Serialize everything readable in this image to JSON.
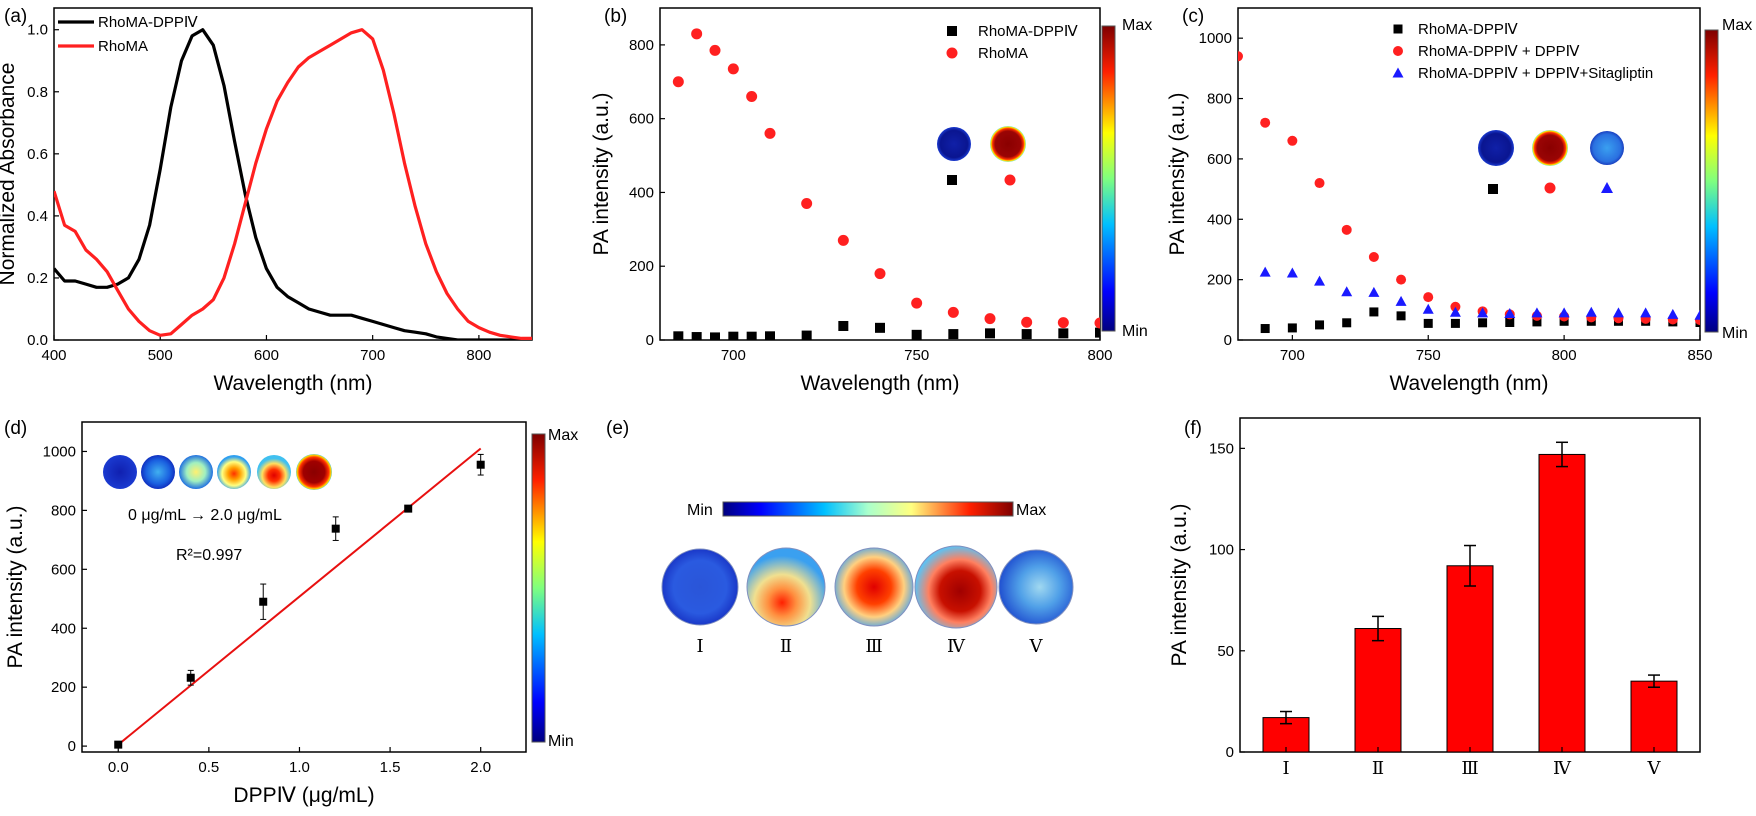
{
  "colors": {
    "black_series": "#000000",
    "red_series": "#ff2020",
    "blue_series": "#1a1aff",
    "bar_fill": "#ff0000",
    "fit_line": "#e81010",
    "colormap": [
      "#00007f",
      "#0000ff",
      "#007fff",
      "#00ffff",
      "#7fff7f",
      "#ffff00",
      "#ff7f00",
      "#ff0000",
      "#7f0000"
    ]
  },
  "chart_data": [
    {
      "panel": "(a)",
      "type": "line",
      "xlabel": "Wavelength (nm)",
      "ylabel": "Normalized Absorbance",
      "xlim": [
        400,
        850
      ],
      "ylim": [
        0,
        1.07
      ],
      "xticks": [
        400,
        500,
        600,
        700,
        800
      ],
      "yticks": [
        0.0,
        0.2,
        0.4,
        0.6,
        0.8,
        1.0
      ],
      "legend_position": "top-left",
      "series": [
        {
          "name": "RhoMA-DPPⅣ",
          "color": "#000000",
          "x": [
            400,
            410,
            420,
            430,
            440,
            450,
            460,
            470,
            480,
            490,
            500,
            510,
            520,
            530,
            540,
            550,
            560,
            570,
            580,
            590,
            600,
            610,
            620,
            630,
            640,
            650,
            660,
            670,
            680,
            690,
            700,
            710,
            720,
            730,
            740,
            750,
            760,
            770,
            780,
            800,
            850
          ],
          "y": [
            0.23,
            0.19,
            0.19,
            0.18,
            0.17,
            0.17,
            0.18,
            0.2,
            0.26,
            0.37,
            0.55,
            0.75,
            0.9,
            0.98,
            1.0,
            0.95,
            0.82,
            0.64,
            0.47,
            0.33,
            0.23,
            0.17,
            0.14,
            0.12,
            0.1,
            0.09,
            0.08,
            0.08,
            0.08,
            0.07,
            0.06,
            0.05,
            0.04,
            0.03,
            0.025,
            0.02,
            0.01,
            0.005,
            0.0,
            0.0,
            0.0
          ]
        },
        {
          "name": "RhoMA",
          "color": "#ff2020",
          "x": [
            400,
            410,
            420,
            430,
            440,
            450,
            460,
            470,
            480,
            490,
            500,
            510,
            520,
            530,
            540,
            550,
            560,
            570,
            580,
            590,
            600,
            610,
            620,
            630,
            640,
            650,
            660,
            670,
            680,
            690,
            700,
            710,
            720,
            730,
            740,
            750,
            760,
            770,
            780,
            790,
            800,
            810,
            820,
            830,
            840,
            850
          ],
          "y": [
            0.48,
            0.37,
            0.35,
            0.29,
            0.26,
            0.22,
            0.16,
            0.1,
            0.06,
            0.03,
            0.015,
            0.02,
            0.05,
            0.08,
            0.1,
            0.13,
            0.2,
            0.31,
            0.44,
            0.57,
            0.68,
            0.77,
            0.83,
            0.88,
            0.91,
            0.93,
            0.95,
            0.97,
            0.99,
            1.0,
            0.97,
            0.87,
            0.73,
            0.57,
            0.43,
            0.31,
            0.22,
            0.15,
            0.1,
            0.06,
            0.04,
            0.025,
            0.015,
            0.01,
            0.005,
            0.005
          ]
        }
      ]
    },
    {
      "panel": "(b)",
      "type": "scatter",
      "xlabel": "Wavelength (nm)",
      "ylabel": "PA intensity (a.u.)",
      "xlim": [
        680,
        800
      ],
      "ylim": [
        0,
        900
      ],
      "xticks": [
        700,
        750,
        800
      ],
      "yticks": [
        0,
        200,
        400,
        600,
        800
      ],
      "legend_position": "top-right",
      "colorbar": {
        "min_label": "Min",
        "max_label": "Max"
      },
      "series": [
        {
          "name": "RhoMA-DPPⅣ",
          "marker": "square",
          "color": "#000000",
          "x": [
            685,
            690,
            695,
            700,
            705,
            710,
            720,
            730,
            740,
            750,
            760,
            770,
            780,
            790,
            800
          ],
          "y": [
            10,
            8,
            7,
            9,
            9,
            10,
            12,
            38,
            33,
            14,
            16,
            18,
            16,
            18,
            20
          ]
        },
        {
          "name": "RhoMA",
          "marker": "circle",
          "color": "#ff2020",
          "x": [
            685,
            690,
            695,
            700,
            705,
            710,
            720,
            730,
            740,
            750,
            760,
            770,
            780,
            790,
            800
          ],
          "y": [
            700,
            830,
            785,
            735,
            660,
            560,
            370,
            270,
            180,
            100,
            75,
            58,
            48,
            47,
            46
          ]
        }
      ]
    },
    {
      "panel": "(c)",
      "type": "scatter",
      "xlabel": "Wavelength (nm)",
      "ylabel": "PA intensity (a.u.)",
      "xlim": [
        680,
        850
      ],
      "ylim": [
        0,
        1100
      ],
      "xticks": [
        700,
        750,
        800,
        850
      ],
      "yticks": [
        0,
        200,
        400,
        600,
        800,
        1000
      ],
      "legend_position": "top-right",
      "colorbar": {
        "min_label": "Min",
        "max_label": "Max"
      },
      "series": [
        {
          "name": "RhoMA-DPPⅣ",
          "marker": "square",
          "color": "#000000",
          "x": [
            690,
            700,
            710,
            720,
            730,
            740,
            750,
            760,
            770,
            780,
            790,
            800,
            810,
            820,
            830,
            840,
            850
          ],
          "y": [
            38,
            40,
            50,
            57,
            93,
            80,
            55,
            55,
            57,
            58,
            60,
            62,
            62,
            62,
            62,
            60,
            58
          ]
        },
        {
          "name": "RhoMA-DPPⅣ + DPPⅣ",
          "marker": "circle",
          "color": "#ff2020",
          "x": [
            680,
            690,
            700,
            710,
            720,
            730,
            740,
            750,
            760,
            770,
            780,
            790,
            800,
            810,
            820,
            830,
            840,
            850
          ],
          "y": [
            940,
            720,
            660,
            520,
            365,
            275,
            200,
            142,
            110,
            95,
            85,
            80,
            78,
            75,
            72,
            70,
            68,
            66
          ]
        },
        {
          "name": "RhoMA-DPPⅣ + DPPⅣ+Sitagliptin",
          "marker": "triangle",
          "color": "#1a1aff",
          "x": [
            690,
            700,
            710,
            720,
            730,
            740,
            750,
            760,
            770,
            780,
            790,
            800,
            810,
            820,
            830,
            840,
            850
          ],
          "y": [
            225,
            222,
            195,
            160,
            158,
            128,
            102,
            92,
            90,
            88,
            90,
            90,
            92,
            90,
            90,
            85,
            82
          ]
        }
      ]
    },
    {
      "panel": "(d)",
      "type": "scatter",
      "xlabel": "DPPⅣ (μg/mL)",
      "ylabel": "PA intensity (a.u.)",
      "xlim": [
        -0.2,
        2.25
      ],
      "ylim": [
        -20,
        1100
      ],
      "xticks": [
        0.0,
        0.5,
        1.0,
        1.5,
        2.0
      ],
      "yticks": [
        0,
        200,
        400,
        600,
        800,
        1000
      ],
      "annotations": [
        "0 μg/mL → 2.0 μg/mL",
        "R²=0.997"
      ],
      "colorbar": {
        "min_label": "Min",
        "max_label": "Max"
      },
      "series": [
        {
          "marker": "square",
          "color": "#000000",
          "x": [
            0.0,
            0.4,
            0.8,
            1.2,
            1.6,
            2.0
          ],
          "y": [
            5,
            232,
            490,
            738,
            806,
            955
          ],
          "error": [
            8,
            25,
            60,
            40,
            8,
            35
          ]
        }
      ],
      "fit_line": {
        "x": [
          0.0,
          2.0
        ],
        "y": [
          5,
          1010
        ],
        "color": "#e81010"
      }
    },
    {
      "panel": "(f)",
      "type": "bar",
      "ylabel": "PA intensity (a.u.)",
      "ylim": [
        0,
        165
      ],
      "yticks": [
        0,
        50,
        100,
        150
      ],
      "categories": [
        "Ⅰ",
        "Ⅱ",
        "Ⅲ",
        "Ⅳ",
        "Ⅴ"
      ],
      "values": [
        17,
        61,
        92,
        147,
        35
      ],
      "error": [
        3,
        6,
        10,
        6,
        3
      ]
    }
  ],
  "panel_e": {
    "panel": "(e)",
    "colorbar": {
      "min_label": "Min",
      "max_label": "Max"
    },
    "image_labels": [
      "Ⅰ",
      "Ⅱ",
      "Ⅲ",
      "Ⅳ",
      "Ⅴ"
    ]
  }
}
